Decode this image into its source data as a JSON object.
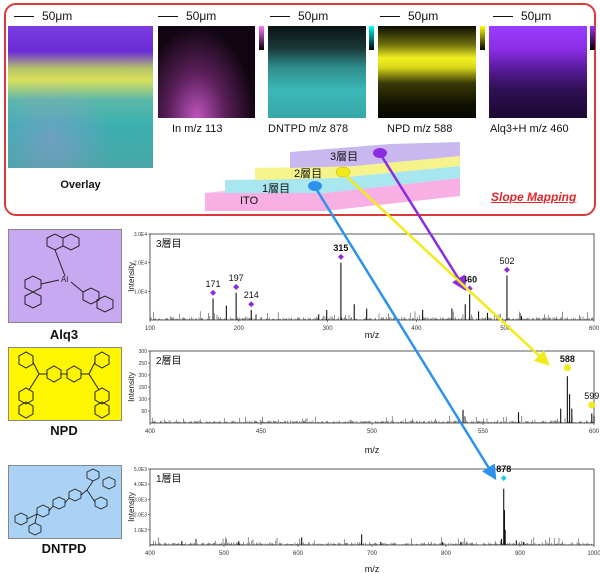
{
  "top_panel": {
    "scale_bar": "50μm",
    "overlay_label": "Overlay",
    "maps": [
      {
        "label": "In m/z 113",
        "colormap": [
          "#ff77ff",
          "#000000"
        ]
      },
      {
        "label": "DNTPD m/z 878",
        "colormap": [
          "#00ffff",
          "#000000"
        ]
      },
      {
        "label": "NPD m/z 588",
        "colormap": [
          "#ffff00",
          "#000000"
        ]
      },
      {
        "label": "Alq3+H m/z 460",
        "colormap": [
          "#9b30ff",
          "#000000"
        ]
      }
    ],
    "layers": [
      {
        "label": "3層目",
        "color": "#c9b8f0"
      },
      {
        "label": "2層目",
        "color": "#f5f38a"
      },
      {
        "label": "1層目",
        "color": "#a8e6f0"
      },
      {
        "label": "ITO",
        "color": "#f8b0e4"
      }
    ],
    "slope_mapping": "Slope Mapping"
  },
  "structures": [
    {
      "name": "Alq3",
      "bg": "#c9a8f2"
    },
    {
      "name": "NPD",
      "bg": "#fdf600"
    },
    {
      "name": "DNTPD",
      "bg": "#a9d2f5"
    }
  ],
  "colors": {
    "frame": "#d93a3a",
    "layer3_arrow": "#8b2be2",
    "layer2_arrow": "#f2ea1b",
    "layer1_arrow": "#2c92ee"
  },
  "chart_data": [
    {
      "type": "line",
      "title": "3層目",
      "xlabel": "m/z",
      "ylabel": "Intensity",
      "xlim": [
        100,
        600
      ],
      "ylim": [
        0,
        3.0
      ],
      "xticks": [
        100,
        200,
        300,
        400,
        500,
        600
      ],
      "yticks": [
        1.0,
        2.0,
        3.0
      ],
      "ytick_labels": [
        "1.0E4",
        "2.0E4",
        "3.0E4"
      ],
      "peaks": [
        {
          "mz": 171,
          "y": 0.75
        },
        {
          "mz": 186,
          "y": 0.5
        },
        {
          "mz": 197,
          "y": 0.95
        },
        {
          "mz": 214,
          "y": 0.35
        },
        {
          "mz": 290,
          "y": 0.2
        },
        {
          "mz": 299,
          "y": 0.35
        },
        {
          "mz": 315,
          "y": 2.0
        },
        {
          "mz": 330,
          "y": 0.55
        },
        {
          "mz": 344,
          "y": 0.4
        },
        {
          "mz": 407,
          "y": 0.35
        },
        {
          "mz": 440,
          "y": 0.4
        },
        {
          "mz": 455,
          "y": 0.55
        },
        {
          "mz": 460,
          "y": 0.9
        },
        {
          "mz": 470,
          "y": 0.3
        },
        {
          "mz": 480,
          "y": 0.25
        },
        {
          "mz": 502,
          "y": 1.55
        },
        {
          "mz": 518,
          "y": 0.15
        }
      ],
      "labels": [
        {
          "mz": 171,
          "text": "171",
          "y": 0.95,
          "bold": false
        },
        {
          "mz": 197,
          "text": "197",
          "y": 1.15,
          "bold": false
        },
        {
          "mz": 214,
          "text": "214",
          "y": 0.55,
          "bold": false
        },
        {
          "mz": 315,
          "text": "315",
          "y": 2.2,
          "bold": true
        },
        {
          "mz": 460,
          "text": "460",
          "y": 1.1,
          "bold": true
        },
        {
          "mz": 502,
          "text": "502",
          "y": 1.75,
          "bold": false
        }
      ]
    },
    {
      "type": "line",
      "title": "2層目",
      "xlabel": "m/z",
      "ylabel": "Intensity",
      "xlim": [
        400,
        600
      ],
      "ylim": [
        0,
        300
      ],
      "xticks": [
        400,
        450,
        500,
        550,
        600
      ],
      "yticks": [
        50,
        100,
        150,
        200,
        250,
        300
      ],
      "ytick_labels": [
        "50",
        "100",
        "150",
        "200",
        "250",
        "300"
      ],
      "peaks": [
        {
          "mz": 541,
          "y": 55
        },
        {
          "mz": 566,
          "y": 45
        },
        {
          "mz": 585,
          "y": 60
        },
        {
          "mz": 588,
          "y": 195
        },
        {
          "mz": 589,
          "y": 120
        },
        {
          "mz": 590,
          "y": 60
        },
        {
          "mz": 599,
          "y": 40
        },
        {
          "mz": 600,
          "y": 30
        }
      ],
      "labels": [
        {
          "mz": 588,
          "text": "588",
          "y": 230,
          "bold": true
        },
        {
          "mz": 599,
          "text": "599",
          "y": 75,
          "bold": false
        }
      ]
    },
    {
      "type": "line",
      "title": "1層目",
      "xlabel": "m/z",
      "ylabel": "Intensity",
      "xlim": [
        400,
        1000
      ],
      "ylim": [
        0,
        5.0
      ],
      "xticks": [
        400,
        500,
        600,
        700,
        800,
        900,
        1000
      ],
      "yticks": [
        1.0,
        2.0,
        3.0,
        4.0,
        5.0
      ],
      "ytick_labels": [
        "1.0E3",
        "2.0E3",
        "3.0E3",
        "4.0E3",
        "5.0E3"
      ],
      "peaks": [
        {
          "mz": 443,
          "y": 0.25
        },
        {
          "mz": 520,
          "y": 0.25
        },
        {
          "mz": 605,
          "y": 0.5
        },
        {
          "mz": 686,
          "y": 0.7
        },
        {
          "mz": 712,
          "y": 0.2
        },
        {
          "mz": 795,
          "y": 0.2
        },
        {
          "mz": 820,
          "y": 0.2
        },
        {
          "mz": 875,
          "y": 0.4
        },
        {
          "mz": 878,
          "y": 3.7
        },
        {
          "mz": 879,
          "y": 2.3
        },
        {
          "mz": 880,
          "y": 1.0
        },
        {
          "mz": 895,
          "y": 0.3
        },
        {
          "mz": 905,
          "y": 0.2
        }
      ],
      "labels": [
        {
          "mz": 878,
          "text": "878",
          "y": 4.4,
          "bold": true
        }
      ]
    }
  ]
}
